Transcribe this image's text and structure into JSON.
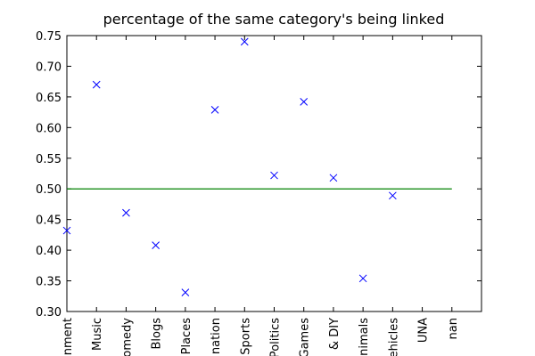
{
  "chart_data": {
    "type": "scatter",
    "title": "percentage of the same category's being linked",
    "categories": [
      "nment",
      "Music",
      "omedy",
      "Blogs",
      "Places",
      "nation",
      "Sports",
      "Politics",
      "Games",
      "& DIY",
      "nimals",
      "ehicles",
      "UNA",
      "nan"
    ],
    "values": [
      0.432,
      0.67,
      0.461,
      0.408,
      0.331,
      0.629,
      0.74,
      0.522,
      0.642,
      0.518,
      0.354,
      0.489,
      null,
      null
    ],
    "color": "#0000ff",
    "marker": "x",
    "reference_line": {
      "value": 0.5,
      "color": "#008000"
    },
    "ylim": [
      0.3,
      0.75
    ],
    "yticks": [
      {
        "value": 0.3,
        "label": "0.30"
      },
      0.35,
      {
        "value": 0.4,
        "label": "0.40"
      },
      0.45,
      {
        "value": 0.5,
        "label": "0.50"
      },
      0.55,
      {
        "value": 0.6,
        "label": "0.60"
      },
      0.65,
      {
        "value": 0.7,
        "label": "0.70"
      },
      0.75
    ],
    "grid": false
  }
}
